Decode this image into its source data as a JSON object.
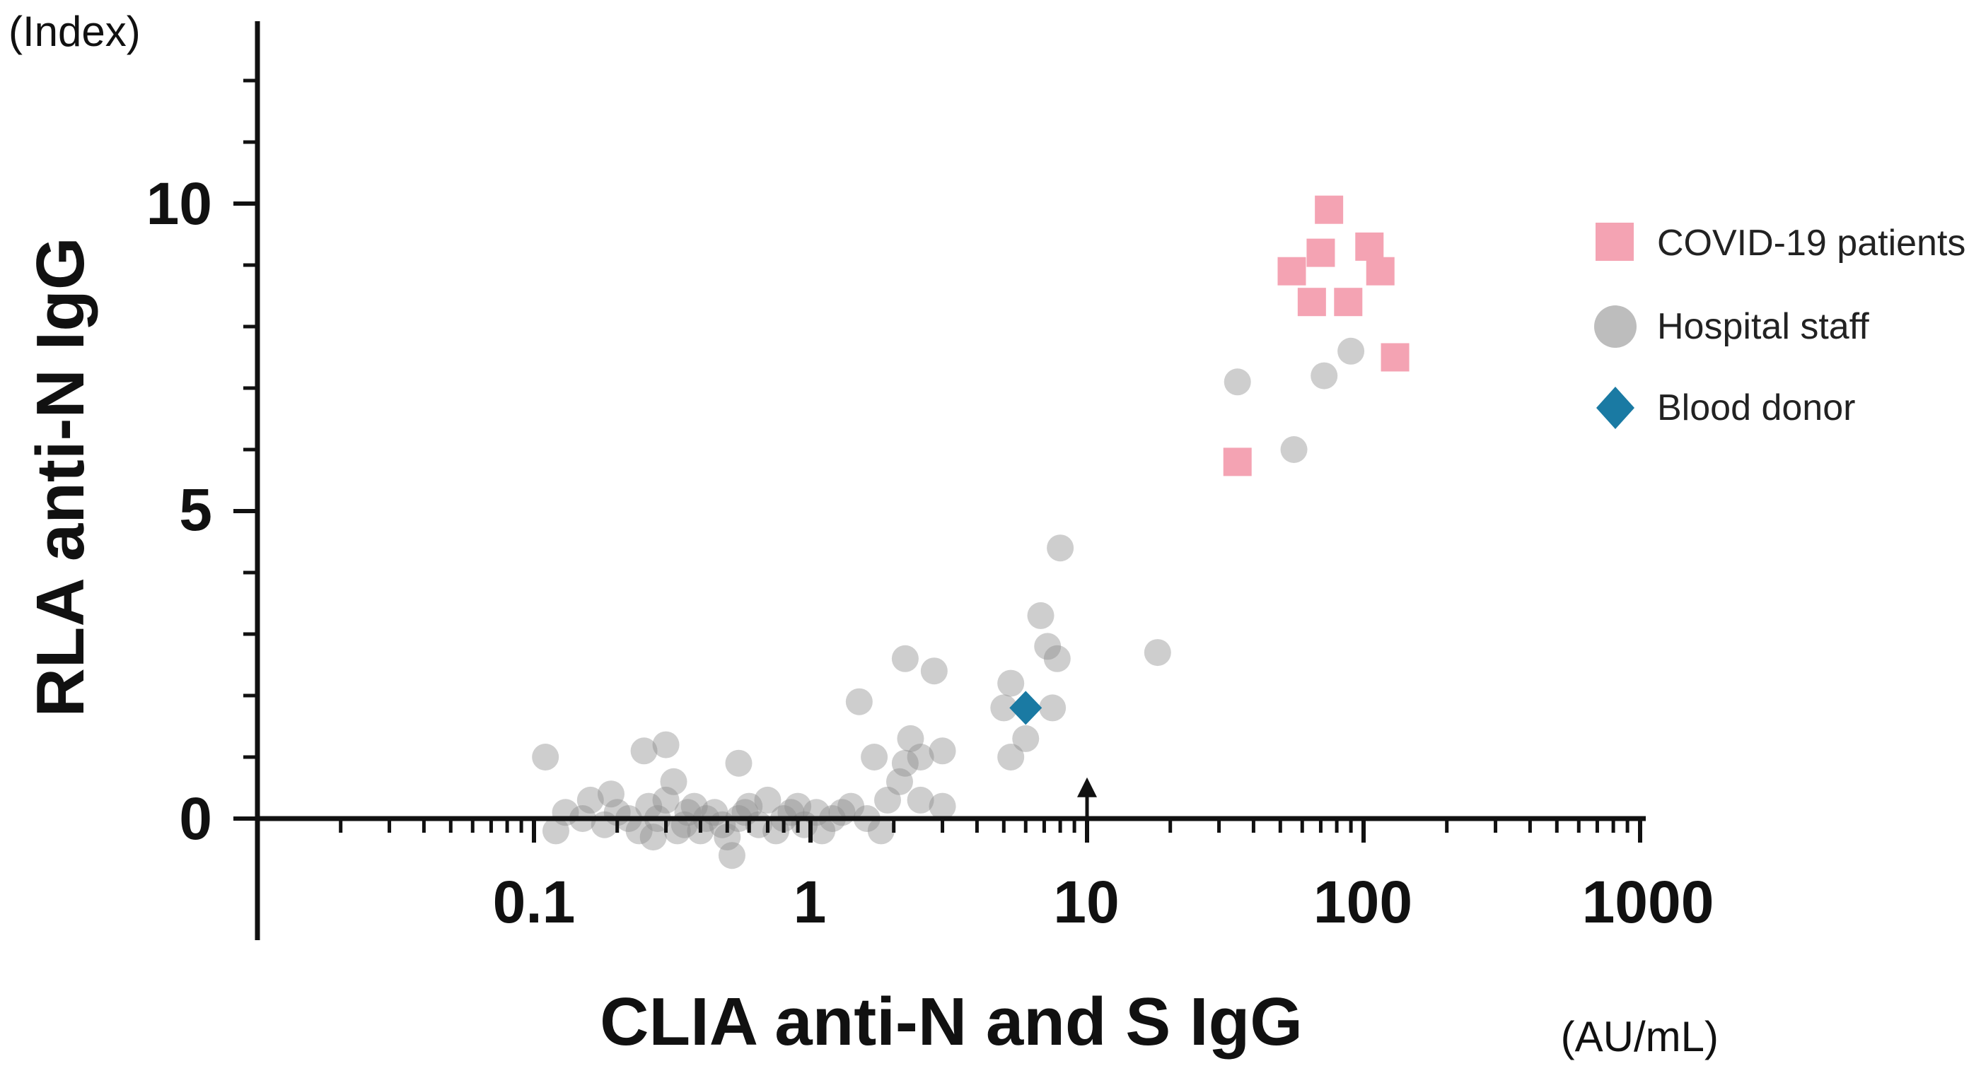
{
  "chart_data": {
    "type": "scatter",
    "title": "",
    "xlabel": "CLIA anti-N and S IgG",
    "xunit": "(AU/mL)",
    "ylabel": "RLA anti-N IgG",
    "yunit": "(Index)",
    "xscale": "log",
    "xlim": [
      0.01,
      1000
    ],
    "ylim": [
      -2,
      12.7
    ],
    "xticks": [
      {
        "value": 0.1,
        "label": "0.1"
      },
      {
        "value": 1,
        "label": "1"
      },
      {
        "value": 10,
        "label": "10"
      },
      {
        "value": 100,
        "label": "100"
      },
      {
        "value": 1000,
        "label": "1000"
      }
    ],
    "yticks": [
      {
        "value": 0,
        "label": "0"
      },
      {
        "value": 5,
        "label": "5"
      },
      {
        "value": 10,
        "label": "10"
      }
    ],
    "annotation": {
      "type": "arrow",
      "x": 10,
      "y_from": 0,
      "y_to": 0.6
    },
    "legend_position": "right",
    "series": [
      {
        "name": "COVID-19 patients",
        "marker": "square",
        "color": "#f4a3b3",
        "points": [
          [
            35,
            5.8
          ],
          [
            55,
            8.9
          ],
          [
            65,
            8.4
          ],
          [
            70,
            9.2
          ],
          [
            75,
            9.9
          ],
          [
            88,
            8.4
          ],
          [
            105,
            9.3
          ],
          [
            115,
            8.9
          ],
          [
            130,
            7.5
          ]
        ]
      },
      {
        "name": "Hospital staff",
        "marker": "circle",
        "color": "#b5b5b5",
        "points": [
          [
            0.11,
            1.0
          ],
          [
            0.25,
            1.1
          ],
          [
            0.3,
            1.2
          ],
          [
            0.32,
            0.6
          ],
          [
            0.55,
            0.9
          ],
          [
            0.13,
            0.1
          ],
          [
            0.15,
            0.0
          ],
          [
            0.18,
            -0.1
          ],
          [
            0.2,
            0.1
          ],
          [
            0.22,
            0.0
          ],
          [
            0.24,
            -0.2
          ],
          [
            0.26,
            0.2
          ],
          [
            0.28,
            0.0
          ],
          [
            0.3,
            0.3
          ],
          [
            0.35,
            -0.1
          ],
          [
            0.38,
            0.2
          ],
          [
            0.4,
            -0.2
          ],
          [
            0.42,
            0.0
          ],
          [
            0.45,
            0.1
          ],
          [
            0.5,
            -0.3
          ],
          [
            0.55,
            0.0
          ],
          [
            0.6,
            0.2
          ],
          [
            0.65,
            -0.1
          ],
          [
            0.7,
            0.3
          ],
          [
            0.8,
            0.0
          ],
          [
            0.9,
            0.2
          ],
          [
            0.95,
            -0.1
          ],
          [
            1.05,
            0.1
          ],
          [
            1.2,
            0.0
          ],
          [
            1.4,
            0.2
          ],
          [
            1.6,
            0.0
          ],
          [
            1.8,
            -0.2
          ],
          [
            0.12,
            -0.2
          ],
          [
            0.16,
            0.3
          ],
          [
            0.19,
            0.4
          ],
          [
            0.27,
            -0.3
          ],
          [
            0.33,
            -0.2
          ],
          [
            0.36,
            0.1
          ],
          [
            0.48,
            -0.1
          ],
          [
            0.52,
            -0.6
          ],
          [
            0.58,
            0.1
          ],
          [
            0.75,
            -0.2
          ],
          [
            0.85,
            0.1
          ],
          [
            1.1,
            -0.2
          ],
          [
            1.3,
            0.1
          ],
          [
            1.5,
            1.9
          ],
          [
            1.7,
            1.0
          ],
          [
            1.9,
            0.3
          ],
          [
            2.1,
            0.6
          ],
          [
            2.2,
            0.9
          ],
          [
            2.2,
            2.6
          ],
          [
            2.3,
            1.3
          ],
          [
            2.5,
            0.3
          ],
          [
            2.5,
            1.0
          ],
          [
            2.8,
            2.4
          ],
          [
            3.0,
            1.1
          ],
          [
            3.0,
            0.2
          ],
          [
            5.0,
            1.8
          ],
          [
            5.3,
            2.2
          ],
          [
            5.3,
            1.0
          ],
          [
            6.0,
            1.3
          ],
          [
            6.8,
            3.3
          ],
          [
            7.2,
            2.8
          ],
          [
            7.5,
            1.8
          ],
          [
            7.8,
            2.6
          ],
          [
            8.0,
            4.4
          ],
          [
            18.0,
            2.7
          ],
          [
            35.0,
            7.1
          ],
          [
            56.0,
            6.0
          ],
          [
            72.0,
            7.2
          ],
          [
            90.0,
            7.6
          ]
        ]
      },
      {
        "name": "Blood donor",
        "marker": "diamond",
        "color": "#1a7aa3",
        "points": [
          [
            6.0,
            1.8
          ]
        ]
      }
    ]
  }
}
